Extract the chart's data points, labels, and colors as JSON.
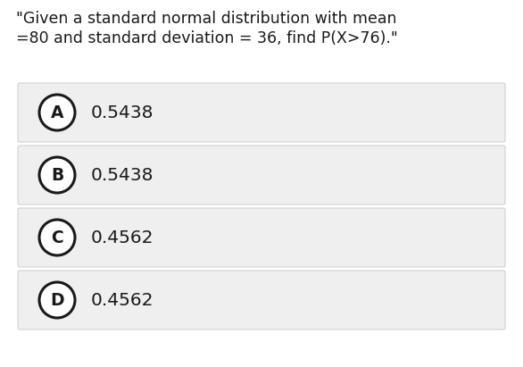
{
  "question_line1": "\"Given a standard normal distribution with mean",
  "question_line2": "=80 and standard deviation = 36, find P(X>76).\"",
  "options": [
    {
      "label": "A",
      "text": "0.5438"
    },
    {
      "label": "B",
      "text": "0.5438"
    },
    {
      "label": "C",
      "text": "0.4562"
    },
    {
      "label": "D",
      "text": "0.4562"
    }
  ],
  "bg_color": "#ffffff",
  "option_bg_color": "#efefef",
  "option_border_color": "#cccccc",
  "text_color": "#1a1a1a",
  "circle_edge_color": "#1a1a1a",
  "circle_face_color": "#ffffff",
  "question_fontsize": 12.5,
  "option_fontsize": 14.5,
  "label_fontsize": 13.5,
  "fig_width": 5.86,
  "fig_height": 4.11,
  "dpi": 100
}
